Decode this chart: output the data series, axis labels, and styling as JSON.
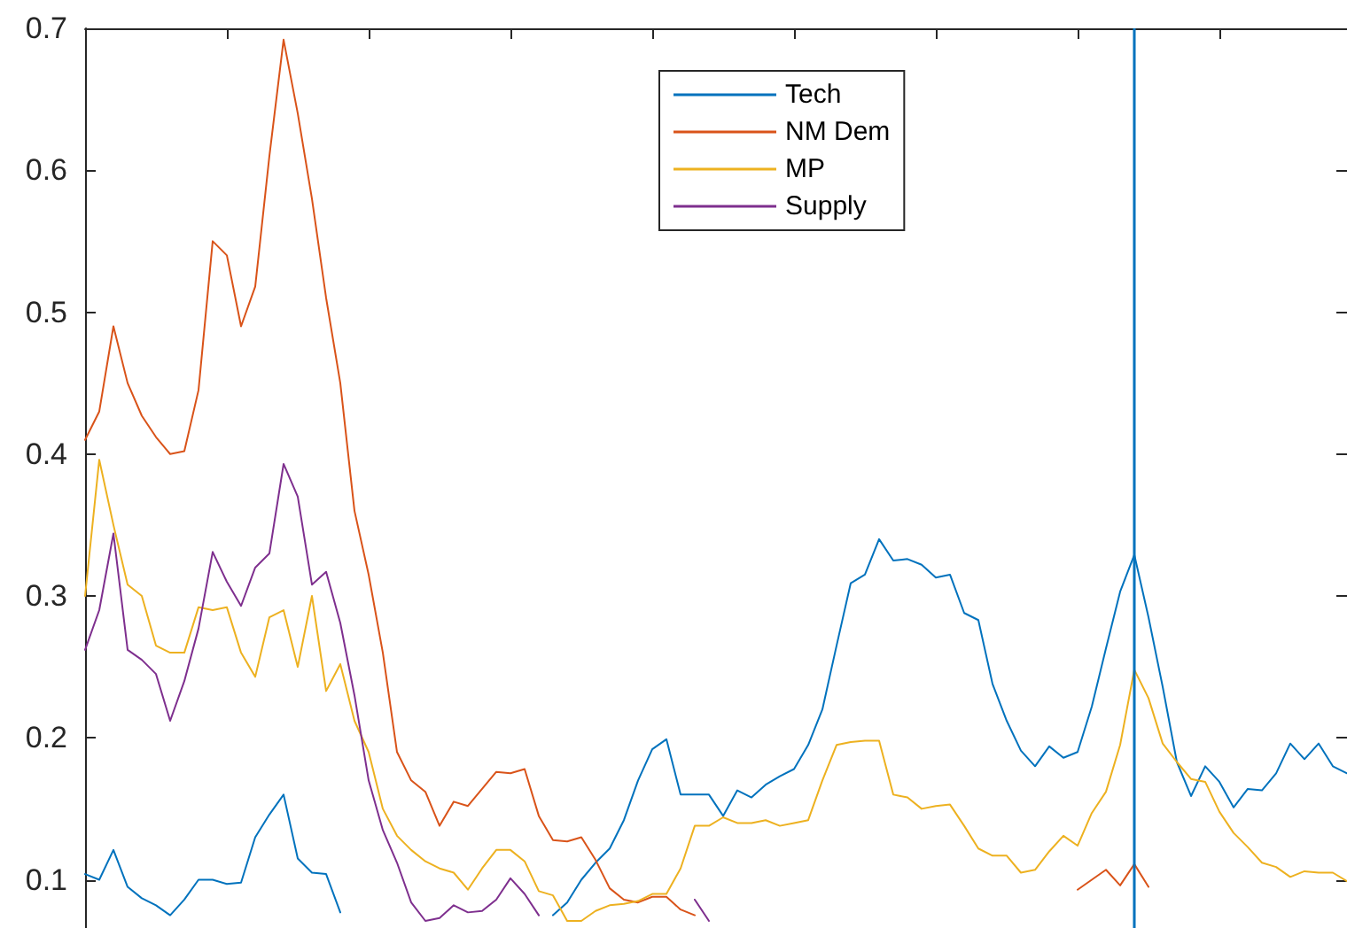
{
  "chart_data": {
    "type": "line",
    "categories": [
      null,
      null,
      null,
      null,
      null,
      null,
      null,
      null,
      null,
      null,
      null,
      null,
      null,
      null,
      null,
      null,
      null,
      null,
      null,
      null,
      null,
      null,
      null,
      null,
      null,
      null,
      null,
      null,
      null,
      null,
      null,
      null,
      null,
      null,
      null,
      null,
      null,
      null,
      null,
      null,
      null,
      null,
      null,
      null,
      null,
      null,
      null,
      null,
      null,
      null,
      null,
      null,
      null,
      null,
      null,
      null,
      null,
      null,
      null,
      null,
      null,
      null,
      null,
      null,
      null,
      null,
      null,
      null,
      null,
      null,
      null,
      null,
      null,
      null,
      null,
      null,
      null,
      null,
      null,
      null,
      null,
      null,
      null,
      null,
      null,
      null,
      null,
      null,
      null,
      null
    ],
    "ylim": [
      0.066,
      0.7
    ],
    "yticks": [
      0.1,
      0.2,
      0.3,
      0.4,
      0.5,
      0.6,
      0.7
    ],
    "tick_labels": "y",
    "legend": "top",
    "line_style": "solid",
    "grid": false,
    "series": [
      {
        "name": "Tech",
        "color": "#0072bd",
        "values": [
          0.104,
          0.1,
          0.121,
          0.095,
          0.087,
          0.082,
          0.075,
          0.086,
          0.1,
          0.1,
          0.097,
          0.098,
          0.13,
          0.146,
          0.16,
          0.115,
          0.105,
          0.104,
          0.077,
          null,
          null,
          null,
          null,
          null,
          null,
          null,
          null,
          null,
          null,
          null,
          null,
          null,
          null,
          0.075,
          0.084,
          0.1,
          0.112,
          0.122,
          0.142,
          0.17,
          0.192,
          0.199,
          0.16,
          0.16,
          0.16,
          0.145,
          0.163,
          0.158,
          0.167,
          0.173,
          0.178,
          0.195,
          0.22,
          0.265,
          0.309,
          0.315,
          0.34,
          0.325,
          0.326,
          0.322,
          0.313,
          0.315,
          0.288,
          0.283,
          0.238,
          0.212,
          0.191,
          0.18,
          0.194,
          0.186,
          0.19,
          0.222,
          0.263,
          0.303,
          0.329,
          0.285,
          0.236,
          0.183,
          0.159,
          0.18,
          0.169,
          0.151,
          0.164,
          0.163,
          0.175,
          0.196,
          0.185,
          0.196,
          0.18,
          0.175
        ]
      },
      {
        "name": "NM Dem",
        "color": "#d95319",
        "values": [
          0.41,
          0.43,
          0.49,
          0.45,
          0.427,
          0.412,
          0.4,
          0.402,
          0.445,
          0.55,
          0.54,
          0.49,
          0.518,
          0.61,
          0.692,
          0.64,
          0.58,
          0.51,
          0.45,
          0.36,
          0.315,
          0.26,
          0.19,
          0.17,
          0.162,
          0.138,
          0.155,
          0.152,
          0.164,
          0.176,
          0.175,
          0.178,
          0.145,
          0.128,
          0.127,
          0.13,
          0.114,
          0.094,
          0.086,
          0.084,
          0.088,
          0.088,
          0.079,
          0.075,
          null,
          null,
          null,
          null,
          null,
          null,
          null,
          null,
          null,
          null,
          null,
          null,
          null,
          null,
          null,
          null,
          null,
          null,
          null,
          null,
          null,
          null,
          null,
          null,
          null,
          null,
          0.093,
          0.1,
          0.107,
          0.096,
          0.111,
          0.095,
          null,
          null,
          null,
          null,
          null,
          null,
          null,
          null,
          null,
          null,
          null,
          null,
          null,
          null
        ]
      },
      {
        "name": "MP",
        "color": "#edb120",
        "values": [
          0.3,
          0.396,
          0.35,
          0.308,
          0.3,
          0.265,
          0.26,
          0.26,
          0.292,
          0.29,
          0.292,
          0.26,
          0.243,
          0.285,
          0.29,
          0.25,
          0.3,
          0.233,
          0.252,
          0.212,
          0.19,
          0.15,
          0.131,
          0.121,
          0.113,
          0.108,
          0.105,
          0.093,
          0.108,
          0.121,
          0.121,
          0.113,
          0.092,
          0.089,
          0.071,
          0.071,
          0.078,
          0.082,
          0.083,
          0.085,
          0.09,
          0.09,
          0.108,
          0.138,
          0.138,
          0.144,
          0.14,
          0.14,
          0.142,
          0.138,
          0.14,
          0.142,
          0.17,
          0.195,
          0.197,
          0.198,
          0.198,
          0.16,
          0.158,
          0.15,
          0.152,
          0.153,
          0.138,
          0.122,
          0.117,
          0.117,
          0.105,
          0.107,
          0.12,
          0.131,
          0.124,
          0.147,
          0.162,
          0.195,
          0.248,
          0.228,
          0.196,
          0.183,
          0.171,
          0.169,
          0.148,
          0.133,
          0.123,
          0.112,
          0.109,
          0.102,
          0.106,
          0.105,
          0.105,
          0.099
        ]
      },
      {
        "name": "Supply",
        "color": "#7e2f8e",
        "values": [
          0.262,
          0.29,
          0.344,
          0.262,
          0.255,
          0.245,
          0.212,
          0.24,
          0.277,
          0.331,
          0.31,
          0.293,
          0.32,
          0.33,
          0.393,
          0.37,
          0.308,
          0.317,
          0.281,
          0.23,
          0.17,
          0.135,
          0.112,
          0.084,
          0.071,
          0.073,
          0.082,
          0.077,
          0.078,
          0.086,
          0.101,
          0.09,
          0.075,
          null,
          null,
          null,
          null,
          null,
          null,
          null,
          null,
          null,
          null,
          0.086,
          0.071,
          null,
          null,
          null,
          null,
          null,
          null,
          null,
          null,
          null,
          null,
          null,
          null,
          null,
          null,
          null,
          null,
          null,
          null,
          null,
          null,
          null,
          null,
          null,
          null,
          null,
          null,
          null,
          null,
          null,
          null,
          null,
          null,
          null,
          null,
          null,
          null,
          null,
          null,
          null,
          null,
          null,
          null,
          null,
          null,
          null
        ]
      }
    ]
  }
}
